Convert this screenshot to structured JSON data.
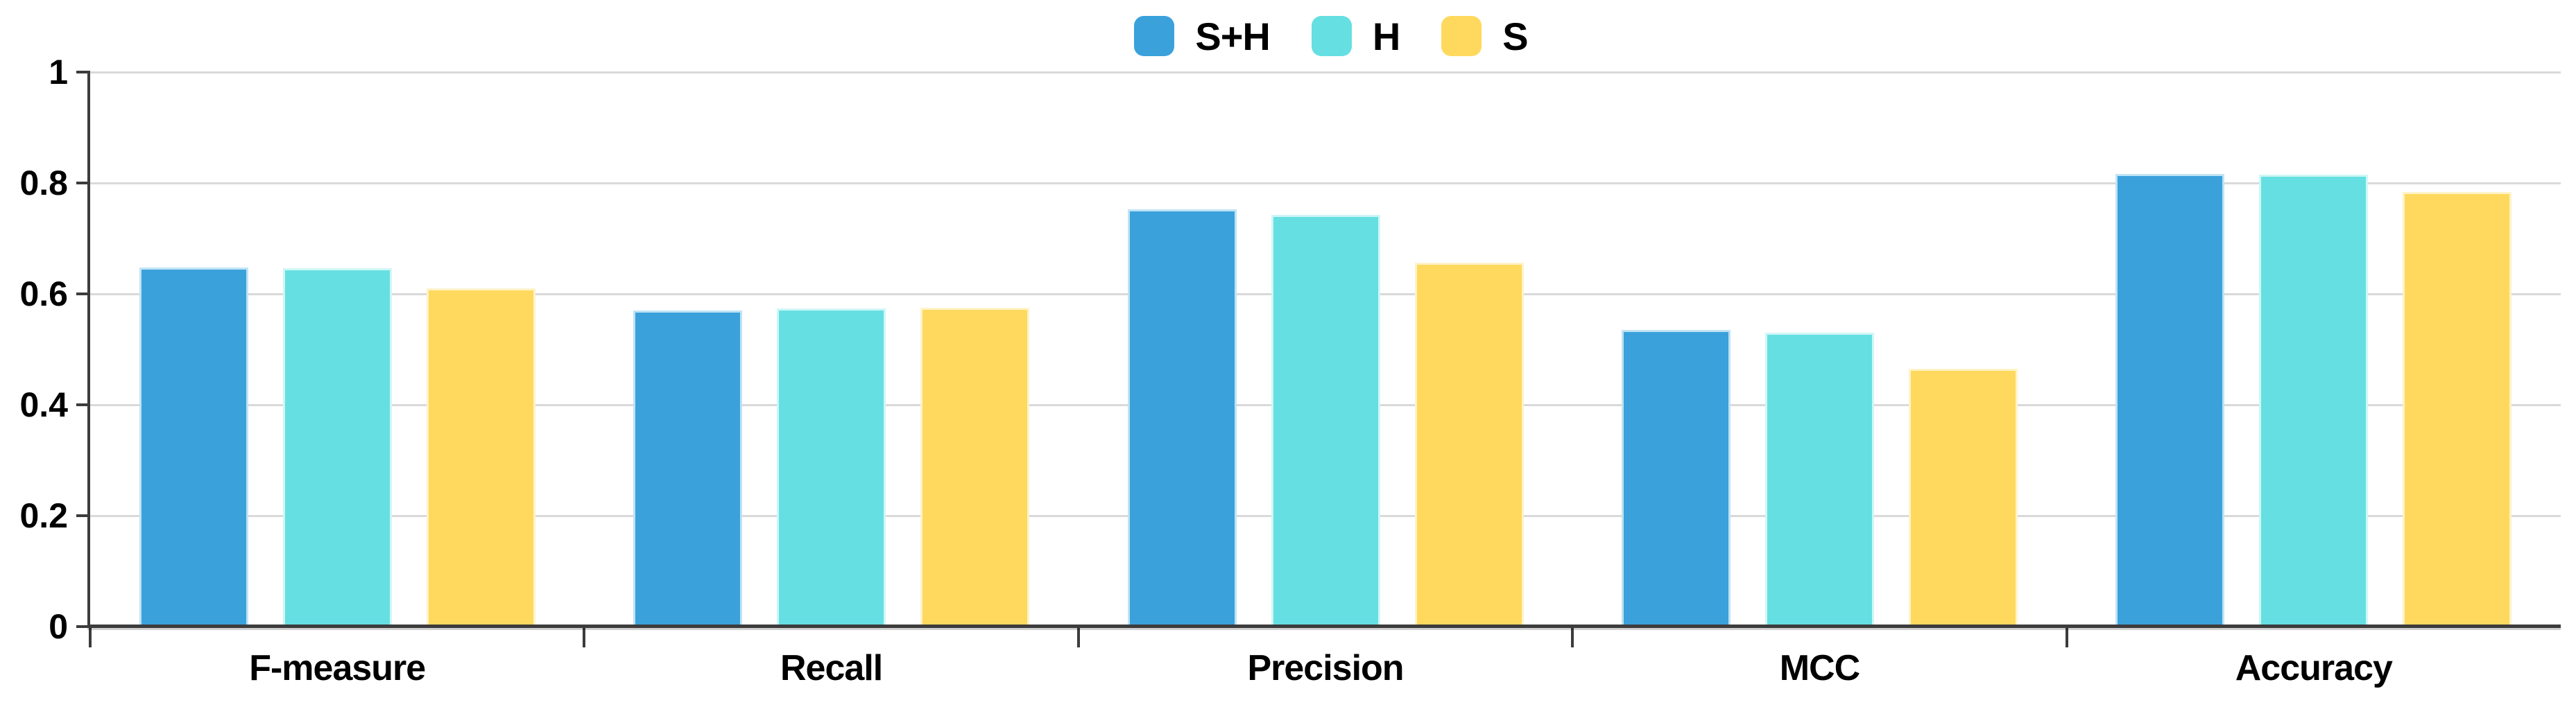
{
  "chart_data": {
    "type": "bar",
    "title": "",
    "xlabel": "",
    "ylabel": "",
    "categories": [
      "F-measure",
      "Recall",
      "Precision",
      "MCC",
      "Accuracy"
    ],
    "series": [
      {
        "name": "S+H",
        "color": "#3AA1DB",
        "edge_color": "#BFE3F4",
        "values": [
          0.648,
          0.57,
          0.753,
          0.535,
          0.816
        ]
      },
      {
        "name": "H",
        "color": "#65DFE1",
        "edge_color": "#CFF6F6",
        "values": [
          0.646,
          0.574,
          0.743,
          0.53,
          0.815
        ]
      },
      {
        "name": "S",
        "color": "#FED95D",
        "edge_color": "#FFF3C9",
        "values": [
          0.61,
          0.575,
          0.656,
          0.465,
          0.784
        ]
      }
    ],
    "ylim": [
      0,
      1
    ],
    "yticks": [
      0,
      0.2,
      0.4,
      0.6,
      0.8,
      1
    ],
    "ytick_labels": [
      "0",
      "0.2",
      "0.4",
      "0.6",
      "0.8",
      "1"
    ],
    "grid": true,
    "legend_position": "top-center"
  },
  "colors": {
    "background": "#FFFFFF",
    "axis": "#3C3C3C",
    "gridline": "#D9D9D9",
    "text": "#000000"
  }
}
